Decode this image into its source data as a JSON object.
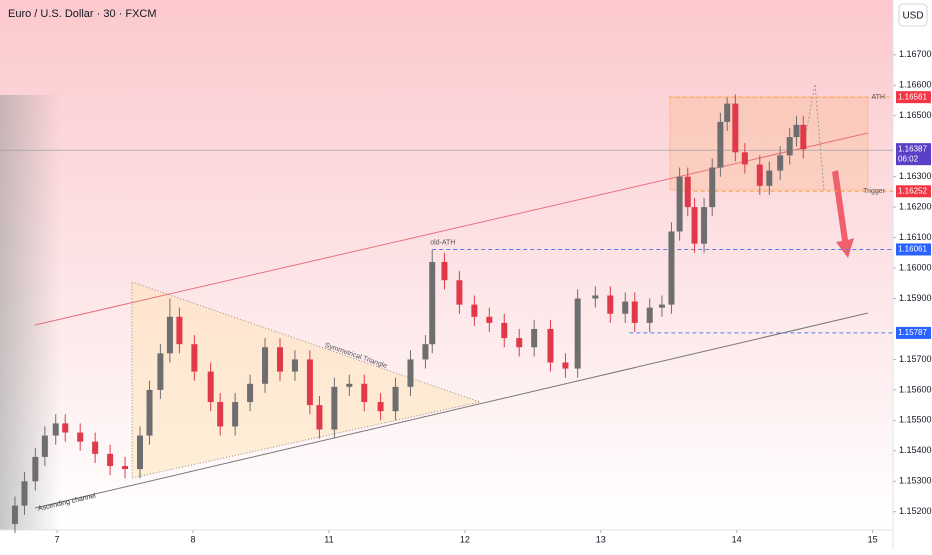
{
  "chart_data": {
    "type": "candlestick",
    "title": "Euro / U.S. Dollar · 30 · FXCM",
    "currency_button": "USD",
    "up_color": "#6e6e6e",
    "down_color": "#e03a4a",
    "xlim": [
      -0.42,
      6.15
    ],
    "xticks": [
      {
        "value": 0,
        "label": "7"
      },
      {
        "value": 1,
        "label": "8"
      },
      {
        "value": 2,
        "label": "11"
      },
      {
        "value": 3,
        "label": "12"
      },
      {
        "value": 4,
        "label": "13"
      },
      {
        "value": 5,
        "label": "14"
      },
      {
        "value": 6,
        "label": "15"
      }
    ],
    "ylim": [
      1.1514,
      1.1688
    ],
    "yticks": [
      {
        "value": 1.152,
        "label": "1.15200"
      },
      {
        "value": 1.153,
        "label": "1.15300"
      },
      {
        "value": 1.154,
        "label": "1.15400"
      },
      {
        "value": 1.155,
        "label": "1.15500"
      },
      {
        "value": 1.156,
        "label": "1.15600"
      },
      {
        "value": 1.157,
        "label": "1.15700"
      },
      {
        "value": 1.159,
        "label": "1.15900"
      },
      {
        "value": 1.16,
        "label": "1.16000"
      },
      {
        "value": 1.161,
        "label": "1.16100"
      },
      {
        "value": 1.162,
        "label": "1.16200"
      },
      {
        "value": 1.163,
        "label": "1.16300"
      },
      {
        "value": 1.165,
        "label": "1.16500"
      },
      {
        "value": 1.166,
        "label": "1.16600"
      },
      {
        "value": 1.167,
        "label": "1.16700"
      }
    ],
    "x": [
      -0.31,
      -0.24,
      -0.16,
      -0.09,
      -0.01,
      0.06,
      0.17,
      0.28,
      0.39,
      0.5,
      0.61,
      0.68,
      0.76,
      0.83,
      0.9,
      1.01,
      1.13,
      1.2,
      1.31,
      1.42,
      1.53,
      1.64,
      1.75,
      1.86,
      1.93,
      2.04,
      2.15,
      2.26,
      2.38,
      2.49,
      2.6,
      2.71,
      2.76,
      2.85,
      2.96,
      3.07,
      3.18,
      3.29,
      3.4,
      3.51,
      3.63,
      3.74,
      3.83,
      3.96,
      4.07,
      4.18,
      4.25,
      4.36,
      4.45,
      4.52,
      4.58,
      4.64,
      4.69,
      4.76,
      4.82,
      4.88,
      4.93,
      4.99,
      5.06,
      5.17,
      5.24,
      5.32,
      5.39,
      5.44,
      5.49
    ],
    "open": [
      1.1516,
      1.1522,
      1.153,
      1.1538,
      1.1545,
      1.1549,
      1.1546,
      1.1543,
      1.1539,
      1.1535,
      1.1534,
      1.1545,
      1.156,
      1.1572,
      1.1584,
      1.1575,
      1.1566,
      1.1556,
      1.1548,
      1.1556,
      1.1562,
      1.1574,
      1.1566,
      1.157,
      1.1555,
      1.1547,
      1.1561,
      1.1562,
      1.1556,
      1.1553,
      1.1561,
      1.157,
      1.1575,
      1.1602,
      1.1596,
      1.1588,
      1.1584,
      1.1582,
      1.1577,
      1.1574,
      1.158,
      1.1569,
      1.1567,
      1.159,
      1.1591,
      1.1585,
      1.1589,
      1.1582,
      1.1587,
      1.1588,
      1.1612,
      1.163,
      1.162,
      1.1608,
      1.162,
      1.1633,
      1.1648,
      1.1654,
      1.1638,
      1.1634,
      1.1627,
      1.1632,
      1.1637,
      1.1643,
      1.1647
    ],
    "high": [
      1.1525,
      1.1533,
      1.1541,
      1.1548,
      1.1552,
      1.1552,
      1.1549,
      1.1546,
      1.1542,
      1.1538,
      1.1548,
      1.1563,
      1.1575,
      1.159,
      1.1587,
      1.1578,
      1.1569,
      1.1559,
      1.1559,
      1.1565,
      1.1577,
      1.1577,
      1.1573,
      1.1573,
      1.1558,
      1.1564,
      1.1565,
      1.1565,
      1.1559,
      1.1564,
      1.1573,
      1.1578,
      1.1606,
      1.1605,
      1.1599,
      1.1591,
      1.1587,
      1.1585,
      1.158,
      1.1583,
      1.1583,
      1.1572,
      1.1593,
      1.1594,
      1.1594,
      1.1592,
      1.1592,
      1.159,
      1.1591,
      1.1615,
      1.1633,
      1.1633,
      1.1623,
      1.1623,
      1.1636,
      1.1651,
      1.1656,
      1.1657,
      1.1641,
      1.1637,
      1.1635,
      1.164,
      1.1646,
      1.165,
      1.165
    ],
    "low": [
      1.1513,
      1.1519,
      1.1527,
      1.1535,
      1.1542,
      1.1543,
      1.154,
      1.1536,
      1.1532,
      1.1531,
      1.1531,
      1.1542,
      1.1557,
      1.1569,
      1.1572,
      1.1563,
      1.1553,
      1.1545,
      1.1545,
      1.1553,
      1.1559,
      1.1563,
      1.1563,
      1.1552,
      1.1544,
      1.1544,
      1.1558,
      1.1553,
      1.155,
      1.155,
      1.1558,
      1.1567,
      1.1572,
      1.1593,
      1.1585,
      1.1581,
      1.1579,
      1.1574,
      1.1571,
      1.1571,
      1.1566,
      1.1564,
      1.1564,
      1.1587,
      1.1582,
      1.1582,
      1.1579,
      1.1579,
      1.1584,
      1.1585,
      1.1609,
      1.1617,
      1.1605,
      1.1605,
      1.1617,
      1.163,
      1.1645,
      1.1635,
      1.1631,
      1.1624,
      1.1624,
      1.1629,
      1.1634,
      1.164,
      1.1636
    ],
    "close": [
      1.1522,
      1.153,
      1.1538,
      1.1545,
      1.1549,
      1.1546,
      1.1543,
      1.1539,
      1.1535,
      1.1534,
      1.1545,
      1.156,
      1.1572,
      1.1584,
      1.1575,
      1.1566,
      1.1556,
      1.1548,
      1.1556,
      1.1562,
      1.1574,
      1.1566,
      1.157,
      1.1555,
      1.1547,
      1.1561,
      1.1562,
      1.1556,
      1.1553,
      1.1561,
      1.157,
      1.1575,
      1.1602,
      1.1596,
      1.1588,
      1.1584,
      1.1582,
      1.1577,
      1.1574,
      1.158,
      1.1569,
      1.1567,
      1.159,
      1.1591,
      1.1585,
      1.1589,
      1.1582,
      1.1587,
      1.1588,
      1.1612,
      1.163,
      1.162,
      1.1608,
      1.162,
      1.1633,
      1.1648,
      1.1654,
      1.1638,
      1.1634,
      1.1627,
      1.1632,
      1.1637,
      1.1643,
      1.1647,
      1.1639
    ],
    "levels": [
      {
        "name": "ATH",
        "value": 1.16561,
        "color": "#f23645",
        "line_color": "#f5a04a",
        "from": 4.5
      },
      {
        "name": "Trigger",
        "value": 1.16252,
        "color": "#f23645",
        "line_color": "#f5a04a",
        "from": 4.58
      },
      {
        "name": "old-ATH",
        "value": 1.16061,
        "color": "#2962ff",
        "line_color": "#5b7cf0",
        "from": 2.76
      },
      {
        "value": 1.15787,
        "color": "#2962ff",
        "line_color": "#5b7cf0",
        "from": 4.21
      }
    ],
    "current": {
      "value": 1.16387,
      "countdown": "06:02",
      "color": "#5b3fc4"
    },
    "annotations": [
      "Symmetrical Triangle",
      "Ascending channel"
    ]
  }
}
